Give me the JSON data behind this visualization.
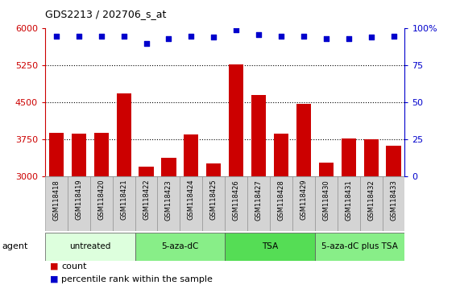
{
  "title": "GDS2213 / 202706_s_at",
  "samples": [
    "GSM118418",
    "GSM118419",
    "GSM118420",
    "GSM118421",
    "GSM118422",
    "GSM118423",
    "GSM118424",
    "GSM118425",
    "GSM118426",
    "GSM118427",
    "GSM118428",
    "GSM118429",
    "GSM118430",
    "GSM118431",
    "GSM118432",
    "GSM118433"
  ],
  "counts": [
    3880,
    3870,
    3880,
    4680,
    3200,
    3380,
    3860,
    3270,
    5280,
    4650,
    3870,
    4480,
    3290,
    3780,
    3760,
    3620
  ],
  "percentile_ranks": [
    95,
    95,
    95,
    95,
    90,
    93,
    95,
    94,
    99,
    96,
    95,
    95,
    93,
    93,
    94,
    95
  ],
  "bar_color": "#cc0000",
  "dot_color": "#0000cc",
  "groups": [
    {
      "label": "untreated",
      "start": 0,
      "end": 4,
      "color": "#ddffdd"
    },
    {
      "label": "5-aza-dC",
      "start": 4,
      "end": 8,
      "color": "#88ee88"
    },
    {
      "label": "TSA",
      "start": 8,
      "end": 12,
      "color": "#55dd55"
    },
    {
      "label": "5-aza-dC plus TSA",
      "start": 12,
      "end": 16,
      "color": "#88ee88"
    }
  ],
  "ylim_left": [
    3000,
    6000
  ],
  "yticks_left": [
    3000,
    3750,
    4500,
    5250,
    6000
  ],
  "ylim_right": [
    0,
    100
  ],
  "yticks_right": [
    0,
    25,
    50,
    75,
    100
  ],
  "left_tick_color": "#cc0000",
  "right_tick_color": "#0000cc",
  "agent_label": "agent",
  "legend_count_label": "count",
  "legend_pct_label": "percentile rank within the sample",
  "grid_lines": [
    3750,
    4500,
    5250
  ],
  "xtick_bg": "#d4d4d4",
  "xtick_border": "#888888"
}
